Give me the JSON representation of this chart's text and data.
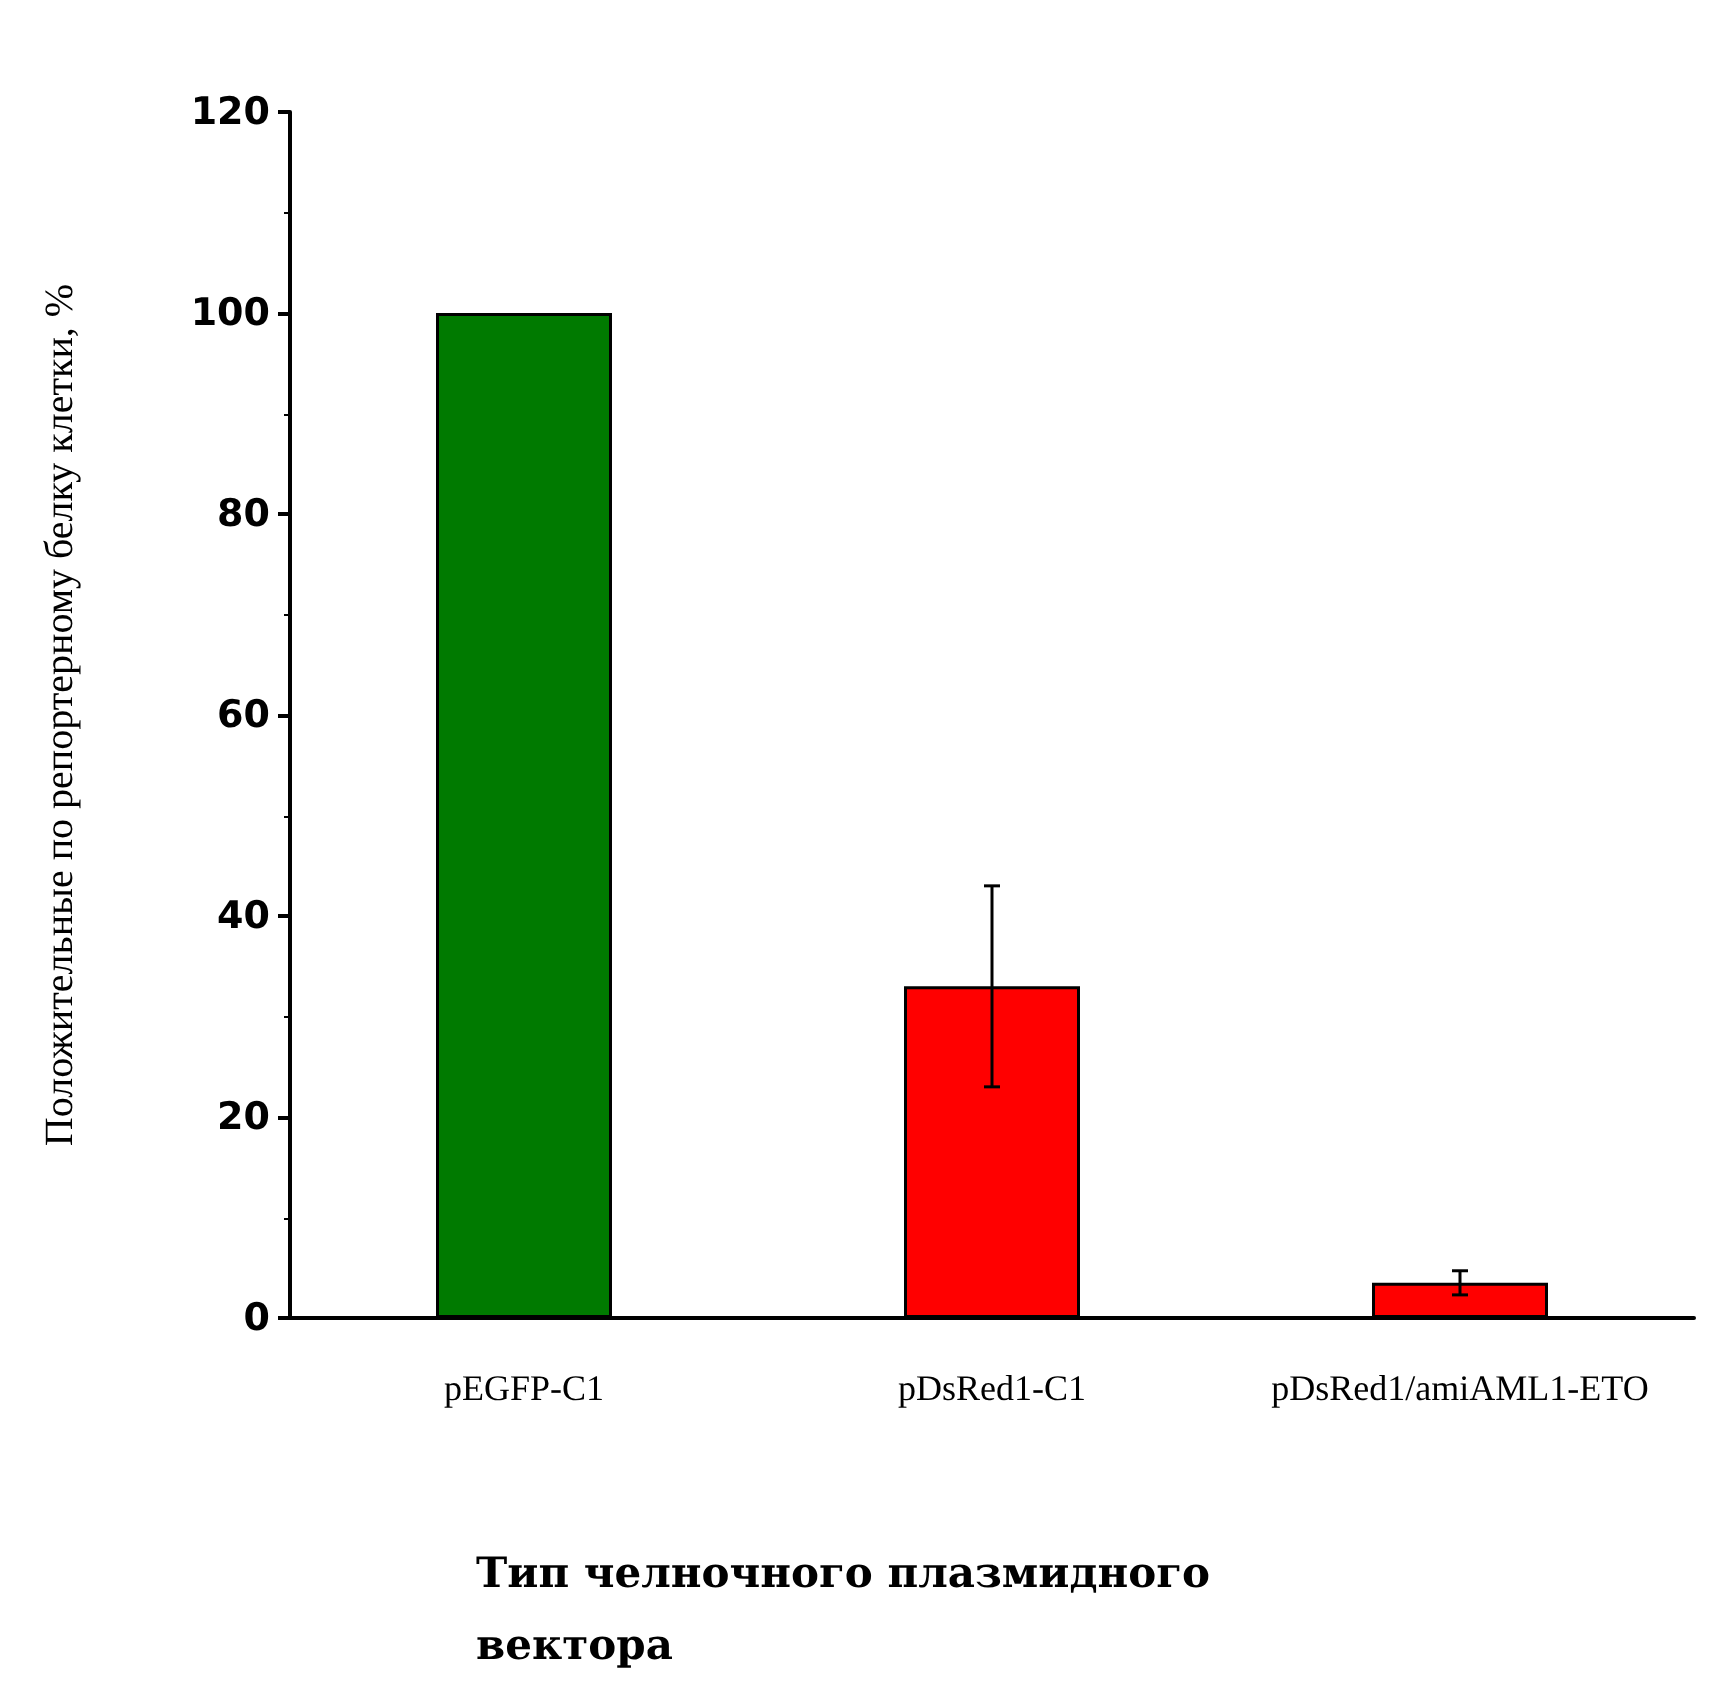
{
  "chart_data": {
    "type": "bar",
    "xlabel": "Тип челночного плазмидного вектора",
    "ylabel": "Положительные по репортерному белку клетки, %",
    "categories": [
      "pEGFP-C1",
      "pDsRed1-C1",
      "pDsRed1/amiAML1-ETO"
    ],
    "values": [
      100,
      33,
      3.5
    ],
    "colors": [
      "#007a00",
      "#ff0000",
      "#ff0000"
    ],
    "errors": [
      null,
      [
        23,
        43
      ],
      [
        2.3,
        4.7
      ]
    ],
    "ylim": [
      0,
      120
    ],
    "yticks": [
      0,
      20,
      40,
      60,
      80,
      100,
      120
    ],
    "grid": false
  }
}
